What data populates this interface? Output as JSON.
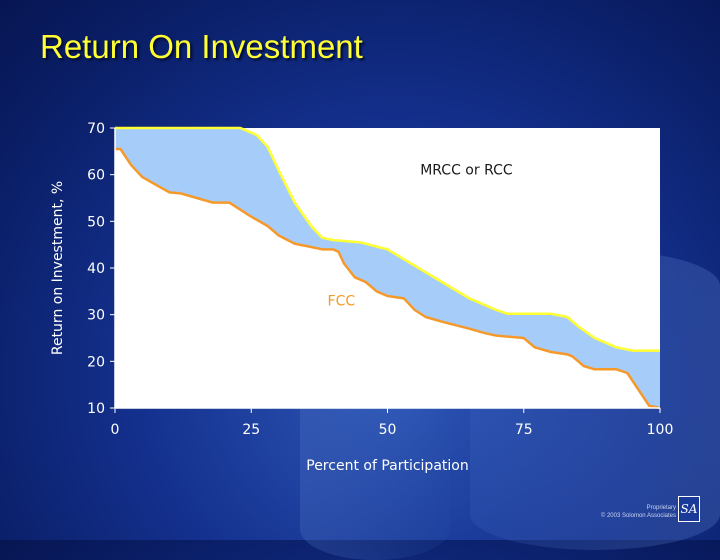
{
  "slide": {
    "title": "Return On Investment",
    "footer_line1": "Proprietary",
    "footer_line2": "© 2003 Solomon Associates",
    "logo_text": "SA",
    "title_color": "#ffff33",
    "background_color": "#14318f"
  },
  "chart_data": {
    "type": "area",
    "title": "",
    "xlabel": "Percent of Participation",
    "ylabel": "Return on Investment, %",
    "xlim": [
      0,
      100
    ],
    "ylim": [
      10,
      70
    ],
    "xticks": [
      0,
      25,
      50,
      75,
      100
    ],
    "yticks": [
      10,
      20,
      30,
      40,
      50,
      60,
      70
    ],
    "grid": false,
    "fill_color": "#a6ccfa",
    "plot_background": "#ffffff",
    "series": [
      {
        "name": "MRCC or RCC",
        "color": "#ffff33",
        "label_x": 56,
        "label_y": 60,
        "x": [
          0,
          7,
          10,
          17,
          23,
          26,
          28,
          30,
          33,
          36,
          38,
          40,
          45,
          50,
          55,
          60,
          65,
          70,
          72,
          80,
          83,
          85,
          88,
          92,
          95,
          100
        ],
        "y": [
          71.5,
          71.5,
          71,
          70.3,
          70.3,
          68.5,
          66,
          61,
          54,
          49,
          46.5,
          46,
          45.5,
          44,
          40.5,
          37,
          33.5,
          31,
          30.2,
          30.2,
          29.5,
          27.5,
          25,
          23,
          22.3,
          22.3
        ]
      },
      {
        "name": "FCC",
        "color": "#f59a2a",
        "label_x": 39,
        "label_y": 32,
        "x": [
          0,
          1,
          3,
          5,
          8,
          10,
          12,
          15,
          18,
          21,
          23,
          25,
          28,
          30,
          33,
          36,
          38,
          40,
          41,
          42,
          44,
          46,
          48,
          50,
          53,
          55,
          57,
          60,
          65,
          68,
          70,
          75,
          77,
          80,
          83,
          84,
          86,
          88,
          92,
          94,
          96,
          98,
          100
        ],
        "y": [
          65.5,
          65.5,
          62,
          59.5,
          57.5,
          56.2,
          56,
          55,
          54,
          54,
          52.5,
          51,
          49,
          47,
          45.2,
          44.5,
          44,
          44,
          43.5,
          41,
          38,
          37,
          35,
          34,
          33.5,
          31,
          29.5,
          28.5,
          27,
          26,
          25.5,
          25,
          23,
          22,
          21.5,
          21,
          19,
          18.3,
          18.3,
          17.5,
          14,
          10.5,
          10
        ]
      }
    ]
  }
}
